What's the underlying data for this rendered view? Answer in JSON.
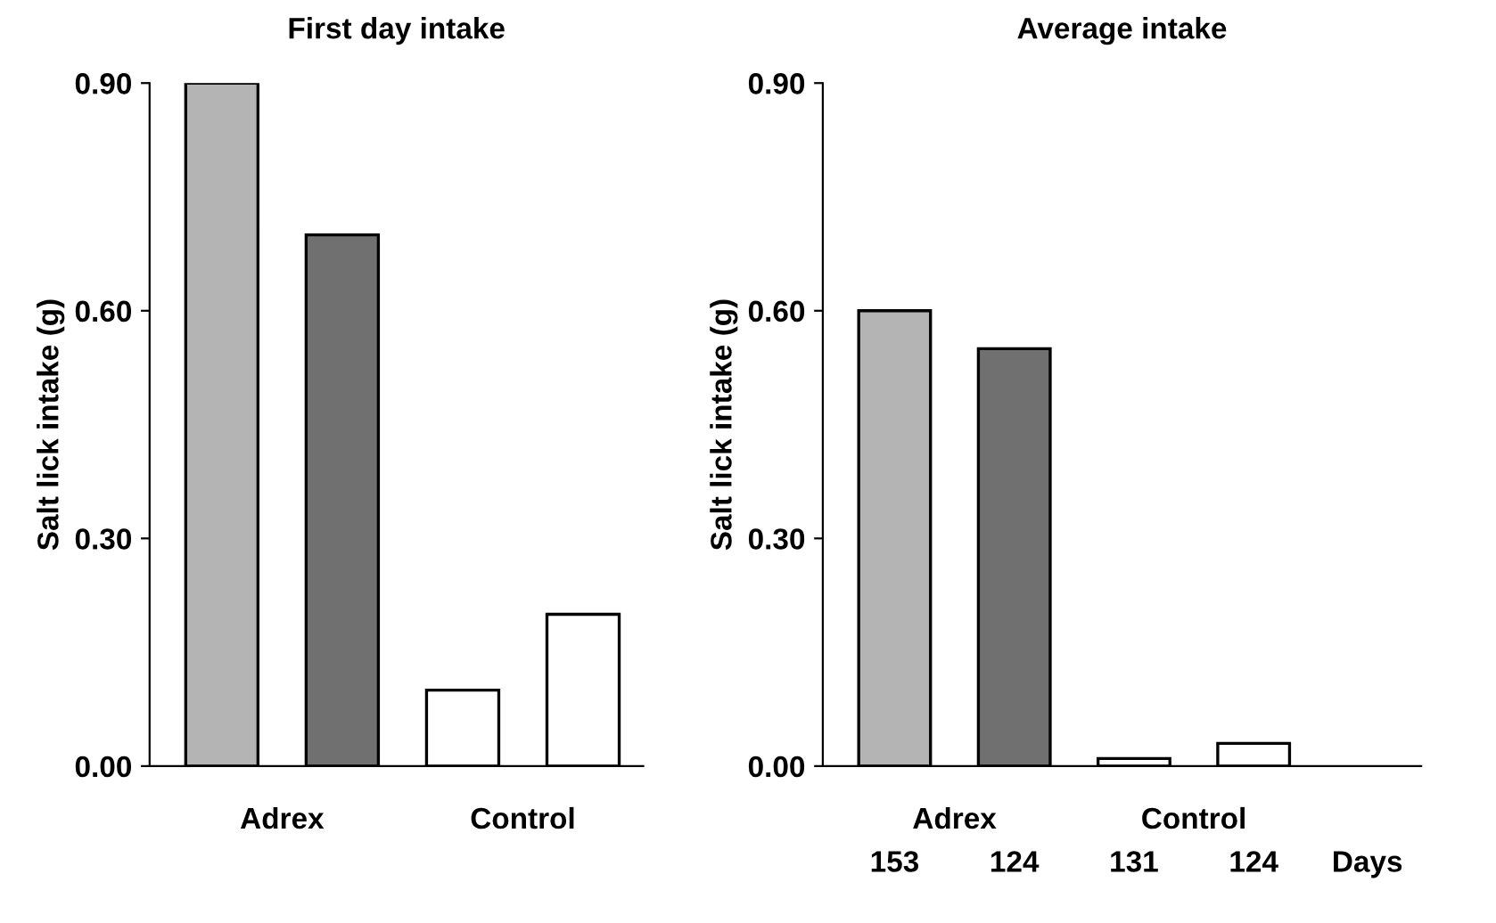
{
  "chart_data": [
    {
      "type": "bar",
      "title": "First day intake",
      "ylabel": "Salt lick intake (g)",
      "categories": [
        null,
        null,
        null,
        null
      ],
      "values": [
        0.9,
        0.7,
        0.1,
        0.2
      ],
      "colors": [
        "#b4b4b4",
        "#707070",
        "#ffffff",
        "#ffffff"
      ],
      "ylim": [
        0,
        0.9
      ],
      "yticks": [
        {
          "value": 0,
          "label": "0.00"
        },
        {
          "value": 0.3,
          "label": "0.30"
        },
        {
          "value": 0.6,
          "label": "0.60"
        },
        {
          "value": 0.9,
          "label": "0.90"
        }
      ],
      "annotations": [
        "Adrex",
        "Control"
      ],
      "grid": false
    },
    {
      "type": "bar",
      "title": "Average intake",
      "ylabel": "Salt lick intake (g)",
      "xlabel": "Days",
      "categories": [
        "153",
        "124",
        "131",
        "124"
      ],
      "values": [
        0.6,
        0.55,
        0.01,
        0.03
      ],
      "colors": [
        "#b4b4b4",
        "#707070",
        "#ffffff",
        "#ffffff"
      ],
      "ylim": [
        0,
        0.9
      ],
      "yticks": [
        {
          "value": 0,
          "label": "0.00"
        },
        {
          "value": 0.3,
          "label": "0.30"
        },
        {
          "value": 0.6,
          "label": "0.60"
        },
        {
          "value": 0.9,
          "label": "0.90"
        }
      ],
      "annotations": [
        "Adrex",
        "Control"
      ],
      "grid": false
    }
  ]
}
